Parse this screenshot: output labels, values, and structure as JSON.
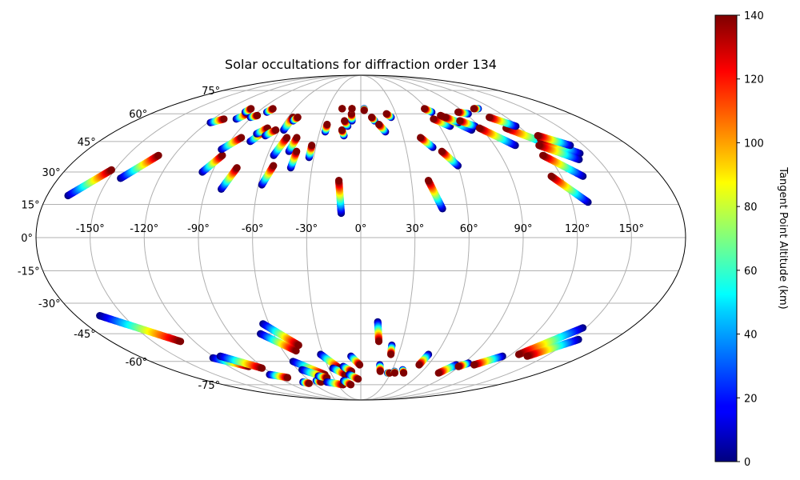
{
  "chart_data": {
    "type": "scatter",
    "projection": "mollweide",
    "title": "Solar occultations for diffraction order 134",
    "grid": true,
    "longitude_ticks": [
      -150,
      -120,
      -90,
      -60,
      -30,
      0,
      30,
      60,
      90,
      120,
      150
    ],
    "longitude_tick_labels": [
      "-150°",
      "-120°",
      "-90°",
      "-60°",
      "-30°",
      "0°",
      "30°",
      "60°",
      "90°",
      "120°",
      "150°"
    ],
    "latitude_ticks": [
      -75,
      -60,
      -45,
      -30,
      -15,
      0,
      15,
      30,
      45,
      60,
      75
    ],
    "latitude_tick_labels": [
      "-75°",
      "-60°",
      "-45°",
      "-30°",
      "-15°",
      "0°",
      "15°",
      "30°",
      "45°",
      "60°",
      "75°"
    ],
    "colorbar": {
      "label": "Tangent Point Altitude (km)",
      "range": [
        0,
        140
      ],
      "ticks": [
        0,
        20,
        40,
        60,
        80,
        100,
        120,
        140
      ],
      "tick_labels": [
        "0",
        "20",
        "40",
        "60",
        "80",
        "100",
        "120",
        "140"
      ],
      "colormap": "jet"
    },
    "series": [
      {
        "name": "occultation",
        "start": [
          -168,
          19
        ],
        "end": [
          -152,
          31
        ]
      },
      {
        "name": "occultation",
        "start": [
          -143,
          27
        ],
        "end": [
          -130,
          38
        ]
      },
      {
        "name": "occultation",
        "start": [
          -118,
          55
        ],
        "end": [
          -111,
          57
        ]
      },
      {
        "name": "occultation",
        "start": [
          -101,
          57
        ],
        "end": [
          -97,
          60
        ]
      },
      {
        "name": "occultation",
        "start": [
          -101,
          61
        ],
        "end": [
          -100,
          63
        ]
      },
      {
        "name": "occultation",
        "start": [
          -91,
          58
        ],
        "end": [
          -87,
          59
        ]
      },
      {
        "name": "occultation",
        "start": [
          -82,
          61
        ],
        "end": [
          -80,
          63
        ]
      },
      {
        "name": "occultation",
        "start": [
          -96,
          30
        ],
        "end": [
          -89,
          38
        ]
      },
      {
        "name": "occultation",
        "start": [
          -92,
          41
        ],
        "end": [
          -84,
          47
        ]
      },
      {
        "name": "occultation",
        "start": [
          -81,
          22
        ],
        "end": [
          -76,
          32
        ]
      },
      {
        "name": "occultation",
        "start": [
          -76,
          45
        ],
        "end": [
          -71,
          50
        ]
      },
      {
        "name": "occultation",
        "start": [
          -75,
          49
        ],
        "end": [
          -70,
          52
        ]
      },
      {
        "name": "occultation",
        "start": [
          -68,
          48
        ],
        "end": [
          -63,
          51
        ]
      },
      {
        "name": "occultation",
        "start": [
          -57,
          51
        ],
        "end": [
          -56,
          58
        ]
      },
      {
        "name": "occultation",
        "start": [
          -56,
          38
        ],
        "end": [
          -52,
          47
        ]
      },
      {
        "name": "occultation",
        "start": [
          -58,
          24
        ],
        "end": [
          -54,
          33
        ]
      },
      {
        "name": "occultation",
        "start": [
          -54,
          56
        ],
        "end": [
          -52,
          58
        ]
      },
      {
        "name": "occultation",
        "start": [
          -47,
          40
        ],
        "end": [
          -45,
          47
        ]
      },
      {
        "name": "occultation",
        "start": [
          -43,
          32
        ],
        "end": [
          -42,
          40
        ]
      },
      {
        "name": "occultation",
        "start": [
          -33,
          37
        ],
        "end": [
          -33,
          43
        ]
      },
      {
        "name": "occultation",
        "start": [
          -26,
          50
        ],
        "end": [
          -26,
          54
        ]
      },
      {
        "name": "occultation",
        "start": [
          -17,
          63
        ],
        "end": [
          -17,
          63
        ]
      },
      {
        "name": "occultation",
        "start": [
          -12,
          48
        ],
        "end": [
          -14,
          51
        ]
      },
      {
        "name": "occultation",
        "start": [
          -10,
          53
        ],
        "end": [
          -13,
          56
        ]
      },
      {
        "name": "occultation",
        "start": [
          -11,
          11
        ],
        "end": [
          -13,
          26
        ]
      },
      {
        "name": "occultation",
        "start": [
          -7,
          56
        ],
        "end": [
          -8,
          60
        ]
      },
      {
        "name": "occultation",
        "start": [
          -8,
          63
        ],
        "end": [
          -8,
          63
        ]
      },
      {
        "name": "occultation",
        "start": [
          3,
          63
        ],
        "end": [
          3,
          62
        ]
      },
      {
        "name": "occultation",
        "start": [
          11,
          56
        ],
        "end": [
          9,
          58
        ]
      },
      {
        "name": "occultation",
        "start": [
          18,
          50
        ],
        "end": [
          14,
          54
        ]
      },
      {
        "name": "occultation",
        "start": [
          25,
          58
        ],
        "end": [
          22,
          60
        ]
      },
      {
        "name": "occultation",
        "start": [
          48,
          42
        ],
        "end": [
          42,
          47
        ]
      },
      {
        "name": "occultation",
        "start": [
          46,
          13
        ],
        "end": [
          40,
          26
        ]
      },
      {
        "name": "occultation",
        "start": [
          60,
          33
        ],
        "end": [
          53,
          40
        ]
      },
      {
        "name": "occultation",
        "start": [
          62,
          61
        ],
        "end": [
          58,
          63
        ]
      },
      {
        "name": "occultation",
        "start": [
          68,
          53
        ],
        "end": [
          59,
          57
        ]
      },
      {
        "name": "occultation",
        "start": [
          82,
          51
        ],
        "end": [
          67,
          59
        ]
      },
      {
        "name": "occultation",
        "start": [
          77,
          55
        ],
        "end": [
          70,
          58
        ]
      },
      {
        "name": "occultation",
        "start": [
          87,
          53
        ],
        "end": [
          79,
          56
        ]
      },
      {
        "name": "occultation",
        "start": [
          92,
          60
        ],
        "end": [
          85,
          61
        ]
      },
      {
        "name": "occultation",
        "start": [
          104,
          43
        ],
        "end": [
          89,
          52
        ]
      },
      {
        "name": "occultation",
        "start": [
          107,
          63
        ],
        "end": [
          103,
          63
        ]
      },
      {
        "name": "occultation",
        "start": [
          128,
          43
        ],
        "end": [
          109,
          52
        ]
      },
      {
        "name": "occultation",
        "start": [
          118,
          53
        ],
        "end": [
          106,
          58
        ]
      },
      {
        "name": "occultation",
        "start": [
          142,
          39
        ],
        "end": [
          125,
          46
        ]
      },
      {
        "name": "occultation",
        "start": [
          141,
          43
        ],
        "end": [
          126,
          48
        ]
      },
      {
        "name": "occultation",
        "start": [
          138,
          36
        ],
        "end": [
          120,
          43
        ]
      },
      {
        "name": "occultation",
        "start": [
          133,
          28
        ],
        "end": [
          117,
          38
        ]
      },
      {
        "name": "occultation",
        "start": [
          129,
          16
        ],
        "end": [
          114,
          28
        ]
      },
      {
        "name": "occultation",
        "start": [
          -165,
          -36
        ],
        "end": [
          -130,
          -49
        ]
      },
      {
        "name": "occultation",
        "start": [
          -122,
          -58
        ],
        "end": [
          -102,
          -63
        ]
      },
      {
        "name": "occultation",
        "start": [
          -114,
          -57
        ],
        "end": [
          -92,
          -64
        ]
      },
      {
        "name": "occultation",
        "start": [
          -94,
          -68
        ],
        "end": [
          -80,
          -70
        ]
      },
      {
        "name": "occultation",
        "start": [
          -70,
          -73
        ],
        "end": [
          -65,
          -74
        ]
      },
      {
        "name": "occultation",
        "start": [
          -69,
          -45
        ],
        "end": [
          -50,
          -54
        ]
      },
      {
        "name": "occultation",
        "start": [
          -64,
          -40
        ],
        "end": [
          -46,
          -51
        ]
      },
      {
        "name": "occultation",
        "start": [
          -58,
          -60
        ],
        "end": [
          -37,
          -68
        ]
      },
      {
        "name": "occultation",
        "start": [
          -56,
          -65
        ],
        "end": [
          -38,
          -70
        ]
      },
      {
        "name": "occultation",
        "start": [
          -52,
          -72
        ],
        "end": [
          -48,
          -73
        ]
      },
      {
        "name": "occultation",
        "start": [
          -45,
          -69
        ],
        "end": [
          -37,
          -70
        ]
      },
      {
        "name": "occultation",
        "start": [
          -41,
          -73
        ],
        "end": [
          -23,
          -75
        ]
      },
      {
        "name": "occultation",
        "start": [
          -32,
          -56
        ],
        "end": [
          -20,
          -64
        ]
      },
      {
        "name": "occultation",
        "start": [
          -26,
          -64
        ],
        "end": [
          -16,
          -68
        ]
      },
      {
        "name": "occultation",
        "start": [
          -16,
          -63
        ],
        "end": [
          -9,
          -66
        ]
      },
      {
        "name": "occultation",
        "start": [
          -12,
          -68
        ],
        "end": [
          -3,
          -71
        ]
      },
      {
        "name": "occultation",
        "start": [
          -8,
          -57
        ],
        "end": [
          -1,
          -62
        ]
      },
      {
        "name": "occultation",
        "start": [
          -20,
          -72
        ],
        "end": [
          -13,
          -75
        ]
      },
      {
        "name": "occultation",
        "start": [
          11,
          -39
        ],
        "end": [
          13,
          -49
        ]
      },
      {
        "name": "occultation",
        "start": [
          23,
          -51
        ],
        "end": [
          24,
          -56
        ]
      },
      {
        "name": "occultation",
        "start": [
          17,
          -62
        ],
        "end": [
          19,
          -66
        ]
      },
      {
        "name": "occultation",
        "start": [
          27,
          -67
        ],
        "end": [
          29,
          -67
        ]
      },
      {
        "name": "occultation",
        "start": [
          33,
          -66
        ],
        "end": [
          34,
          -67
        ]
      },
      {
        "name": "occultation",
        "start": [
          40,
          -65
        ],
        "end": [
          43,
          -67
        ]
      },
      {
        "name": "occultation",
        "start": [
          54,
          -56
        ],
        "end": [
          52,
          -62
        ]
      },
      {
        "name": "occultation",
        "start": [
          85,
          -62
        ],
        "end": [
          78,
          -67
        ]
      },
      {
        "name": "occultation",
        "start": [
          94,
          -61
        ],
        "end": [
          89,
          -63
        ]
      },
      {
        "name": "occultation",
        "start": [
          115,
          -57
        ],
        "end": [
          101,
          -62
        ]
      },
      {
        "name": "occultation",
        "start": [
          148,
          -42
        ],
        "end": [
          126,
          -56
        ]
      },
      {
        "name": "occultation",
        "start": [
          155,
          -48
        ],
        "end": [
          135,
          -57
        ]
      }
    ]
  }
}
